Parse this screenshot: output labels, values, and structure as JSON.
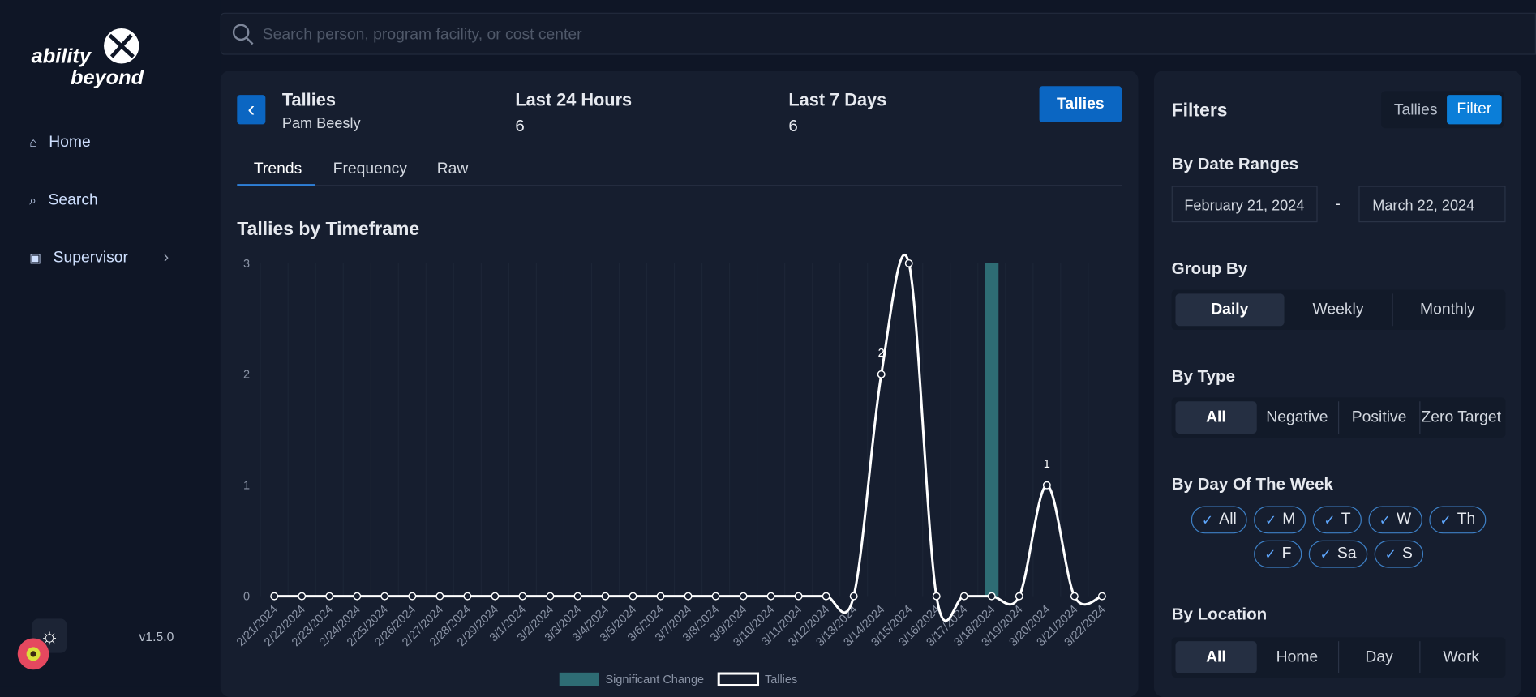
{
  "sidebar": {
    "logo": [
      "ability",
      "beyond"
    ],
    "nav": [
      "Home",
      "Search",
      "Supervisor"
    ],
    "version": "v1.5.0"
  },
  "search": {
    "placeholder": "Search person, program facility, or cost center"
  },
  "header": {
    "title": "Tallies",
    "subtitle": "Pam Beesly",
    "stats": [
      {
        "label": "Last 24 Hours",
        "value": 6
      },
      {
        "label": "Last 7 Days",
        "value": 6
      }
    ],
    "button": "Tallies"
  },
  "tabs": [
    "Trends",
    "Frequency",
    "Raw"
  ],
  "chart_data": {
    "type": "line",
    "title": "Tallies by Timeframe",
    "categories": [
      "2/21/2024",
      "2/22/2024",
      "2/23/2024",
      "2/24/2024",
      "2/25/2024",
      "2/26/2024",
      "2/27/2024",
      "2/28/2024",
      "2/29/2024",
      "3/1/2024",
      "3/2/2024",
      "3/3/2024",
      "3/4/2024",
      "3/5/2024",
      "3/6/2024",
      "3/7/2024",
      "3/8/2024",
      "3/9/2024",
      "3/10/2024",
      "3/11/2024",
      "3/12/2024",
      "3/13/2024",
      "3/14/2024",
      "3/15/2024",
      "3/16/2024",
      "3/17/2024",
      "3/18/2024",
      "3/19/2024",
      "3/20/2024",
      "3/21/2024",
      "3/22/2024"
    ],
    "series": [
      {
        "name": "Significant Change",
        "type": "bar",
        "color": "#2e6c74",
        "values": [
          0,
          0,
          0,
          0,
          0,
          0,
          0,
          0,
          0,
          0,
          0,
          0,
          0,
          0,
          0,
          0,
          0,
          0,
          0,
          0,
          0,
          0,
          0,
          0,
          0,
          0,
          3,
          0,
          0,
          0,
          0
        ]
      },
      {
        "name": "Tallies",
        "type": "line",
        "color": "#ffffff",
        "values": [
          0,
          0,
          0,
          0,
          0,
          0,
          0,
          0,
          0,
          0,
          0,
          0,
          0,
          0,
          0,
          0,
          0,
          0,
          0,
          0,
          0,
          0,
          2,
          3,
          0,
          0,
          0,
          0,
          1,
          0,
          0
        ],
        "value_labels": [
          null,
          null,
          null,
          null,
          null,
          null,
          null,
          null,
          null,
          null,
          null,
          null,
          null,
          null,
          null,
          null,
          null,
          null,
          null,
          null,
          null,
          null,
          "2",
          null,
          null,
          null,
          null,
          null,
          "1",
          null,
          null
        ]
      }
    ],
    "ylim": [
      0,
      3
    ],
    "yticks": [
      0,
      1,
      2,
      3
    ]
  },
  "filters": {
    "title": "Filters",
    "toggle": [
      "Tallies",
      "Filter"
    ],
    "date_range": {
      "label": "By Date Ranges",
      "start": "February 21, 2024",
      "separator": "-",
      "end": "March 22, 2024"
    },
    "group_by": {
      "label": "Group By",
      "options": [
        "Daily",
        "Weekly",
        "Monthly"
      ]
    },
    "type": {
      "label": "By Type",
      "options": [
        "All",
        "Negative",
        "Positive",
        "Zero Target"
      ]
    },
    "day_of_week": {
      "label": "By Day Of The Week",
      "options": [
        "All",
        "M",
        "T",
        "W",
        "Th",
        "F",
        "Sa",
        "S"
      ]
    },
    "location": {
      "label": "By Location",
      "options": [
        "All",
        "Home",
        "Day",
        "Work"
      ]
    }
  }
}
